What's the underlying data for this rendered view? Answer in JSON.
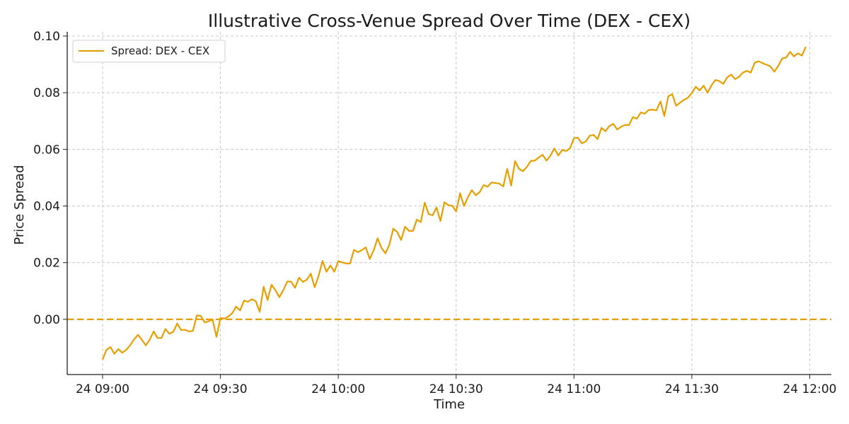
{
  "chart_data": {
    "type": "line",
    "title": "Illustrative Cross-Venue Spread Over Time (DEX - CEX)",
    "xlabel": "Time",
    "ylabel": "Price Spread",
    "x_ticks": [
      "24 09:00",
      "24 09:30",
      "24 10:00",
      "24 10:30",
      "24 11:00",
      "24 11:30",
      "24 12:00"
    ],
    "y_ticks": [
      "0.00",
      "0.02",
      "0.04",
      "0.06",
      "0.08",
      "0.10"
    ],
    "xlim": [
      "09:00",
      "12:00"
    ],
    "ylim": [
      -0.0195,
      0.1015
    ],
    "x_pad_minutes": [
      9,
      5.5
    ],
    "grid": true,
    "legend_position": "top-left",
    "reference_line": {
      "y": 0.0,
      "style": "dashed",
      "color": "#e69f00"
    },
    "series": [
      {
        "name": "Spread: DEX - CEX",
        "color": "#e69f00",
        "x": [
          "09:00",
          "09:01",
          "09:02",
          "09:03",
          "09:04",
          "09:05",
          "09:06",
          "09:07",
          "09:08",
          "09:09",
          "09:10",
          "09:11",
          "09:12",
          "09:13",
          "09:14",
          "09:15",
          "09:16",
          "09:17",
          "09:18",
          "09:19",
          "09:20",
          "09:21",
          "09:22",
          "09:23",
          "09:24",
          "09:25",
          "09:26",
          "09:27",
          "09:28",
          "09:29",
          "09:30",
          "09:31",
          "09:32",
          "09:33",
          "09:34",
          "09:35",
          "09:36",
          "09:37",
          "09:38",
          "09:39",
          "09:40",
          "09:41",
          "09:42",
          "09:43",
          "09:44",
          "09:45",
          "09:46",
          "09:47",
          "09:48",
          "09:49",
          "09:50",
          "09:51",
          "09:52",
          "09:53",
          "09:54",
          "09:55",
          "09:56",
          "09:57",
          "09:58",
          "09:59",
          "10:00",
          "10:01",
          "10:02",
          "10:03",
          "10:04",
          "10:05",
          "10:06",
          "10:07",
          "10:08",
          "10:09",
          "10:10",
          "10:11",
          "10:12",
          "10:13",
          "10:14",
          "10:15",
          "10:16",
          "10:17",
          "10:18",
          "10:19",
          "10:20",
          "10:21",
          "10:22",
          "10:23",
          "10:24",
          "10:25",
          "10:26",
          "10:27",
          "10:28",
          "10:29",
          "10:30",
          "10:31",
          "10:32",
          "10:33",
          "10:34",
          "10:35",
          "10:36",
          "10:37",
          "10:38",
          "10:39",
          "10:40",
          "10:41",
          "10:42",
          "10:43",
          "10:44",
          "10:45",
          "10:46",
          "10:47",
          "10:48",
          "10:49",
          "10:50",
          "10:51",
          "10:52",
          "10:53",
          "10:54",
          "10:55",
          "10:56",
          "10:57",
          "10:58",
          "10:59",
          "11:00",
          "11:01",
          "11:02",
          "11:03",
          "11:04",
          "11:05",
          "11:06",
          "11:07",
          "11:08",
          "11:09",
          "11:10",
          "11:11",
          "11:12",
          "11:13",
          "11:14",
          "11:15",
          "11:16",
          "11:17",
          "11:18",
          "11:19",
          "11:20",
          "11:21",
          "11:22",
          "11:23",
          "11:24",
          "11:25",
          "11:26",
          "11:27",
          "11:28",
          "11:29",
          "11:30",
          "11:31",
          "11:32",
          "11:33",
          "11:34",
          "11:35",
          "11:36",
          "11:37",
          "11:38",
          "11:39",
          "11:40",
          "11:41",
          "11:42",
          "11:43",
          "11:44",
          "11:45",
          "11:46",
          "11:47",
          "11:48",
          "11:49",
          "11:50",
          "11:51",
          "11:52",
          "11:53",
          "11:54",
          "11:55",
          "11:56",
          "11:57",
          "11:58",
          "11:59"
        ],
        "y": [
          -0.0142,
          -0.0108,
          -0.0098,
          -0.0122,
          -0.0105,
          -0.0118,
          -0.0108,
          -0.0092,
          -0.0071,
          -0.0055,
          -0.0072,
          -0.0092,
          -0.0072,
          -0.0043,
          -0.0066,
          -0.0066,
          -0.0034,
          -0.0051,
          -0.0044,
          -0.0015,
          -0.0038,
          -0.0037,
          -0.0043,
          -0.0041,
          0.0014,
          0.0012,
          -0.0011,
          -0.0007,
          -0.0001,
          -0.0062,
          0.0005,
          0.0002,
          0.001,
          0.0021,
          0.0045,
          0.0031,
          0.0066,
          0.0062,
          0.0071,
          0.0064,
          0.0026,
          0.0115,
          0.0068,
          0.0122,
          0.0103,
          0.0078,
          0.0103,
          0.0133,
          0.0133,
          0.0111,
          0.0147,
          0.0132,
          0.014,
          0.0161,
          0.0113,
          0.0154,
          0.0206,
          0.0168,
          0.019,
          0.0168,
          0.0205,
          0.0201,
          0.0197,
          0.0197,
          0.0245,
          0.0237,
          0.0244,
          0.0254,
          0.0213,
          0.0243,
          0.0286,
          0.0252,
          0.0233,
          0.0263,
          0.032,
          0.0308,
          0.028,
          0.0327,
          0.0312,
          0.0312,
          0.0352,
          0.0343,
          0.0412,
          0.0372,
          0.0367,
          0.0395,
          0.0347,
          0.0413,
          0.0403,
          0.0401,
          0.0381,
          0.0445,
          0.04,
          0.0431,
          0.0456,
          0.0438,
          0.0449,
          0.0474,
          0.0468,
          0.0483,
          0.0481,
          0.0479,
          0.0469,
          0.0531,
          0.0472,
          0.0559,
          0.0531,
          0.0523,
          0.0538,
          0.0559,
          0.056,
          0.0571,
          0.0581,
          0.056,
          0.0578,
          0.0603,
          0.0578,
          0.0598,
          0.0594,
          0.0604,
          0.064,
          0.0641,
          0.0621,
          0.0628,
          0.0648,
          0.0651,
          0.0636,
          0.0676,
          0.0664,
          0.0682,
          0.069,
          0.067,
          0.068,
          0.0686,
          0.0686,
          0.0714,
          0.0708,
          0.073,
          0.0726,
          0.0739,
          0.074,
          0.0738,
          0.0769,
          0.0718,
          0.0787,
          0.0795,
          0.0754,
          0.0765,
          0.0775,
          0.0782,
          0.0799,
          0.0821,
          0.0808,
          0.0825,
          0.08,
          0.0826,
          0.0845,
          0.0841,
          0.0831,
          0.0854,
          0.0864,
          0.0848,
          0.0856,
          0.0871,
          0.0877,
          0.0871,
          0.0906,
          0.0911,
          0.0904,
          0.0899,
          0.0893,
          0.0874,
          0.0895,
          0.0921,
          0.0924,
          0.0944,
          0.0928,
          0.0939,
          0.0931,
          0.0962
        ]
      }
    ]
  }
}
